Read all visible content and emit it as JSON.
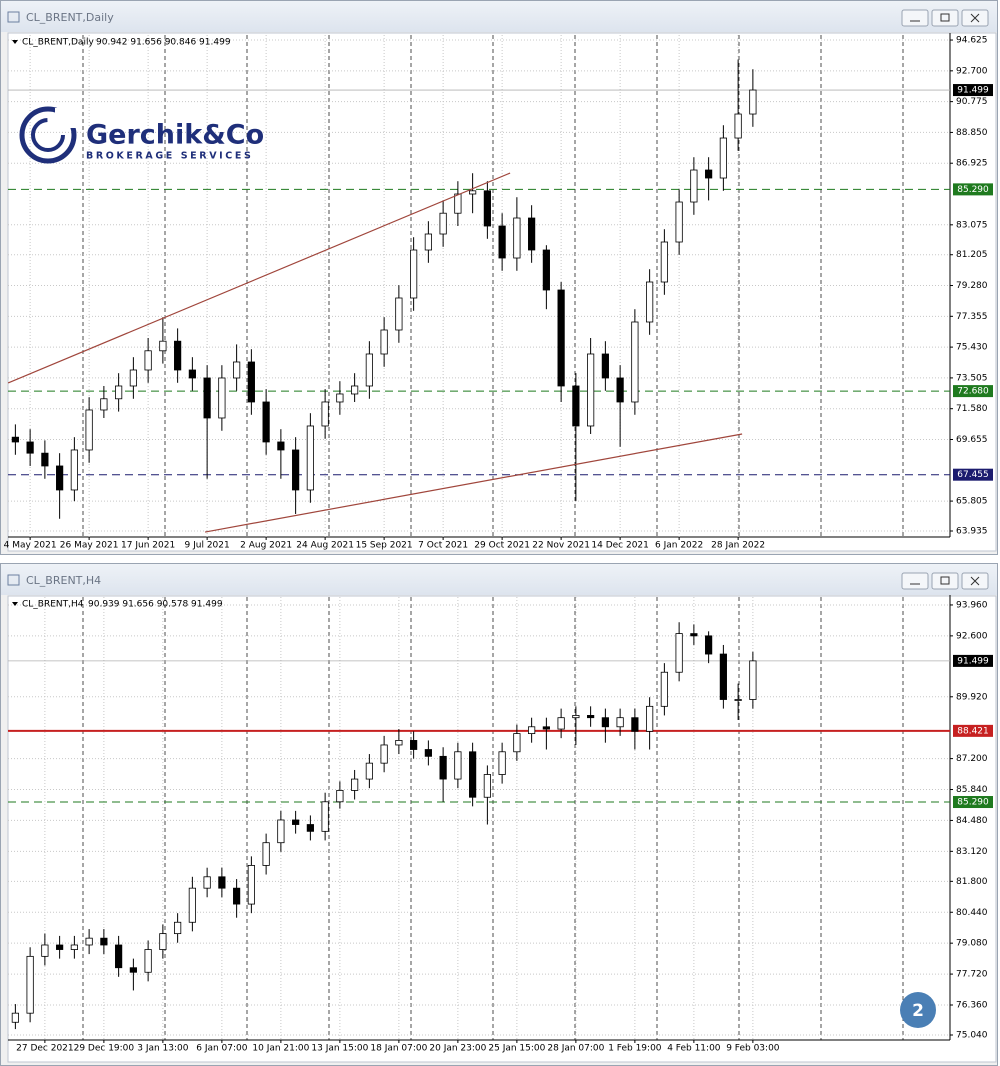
{
  "chart_data": [
    {
      "type": "candlestick",
      "title": "CL_BRENT,Daily",
      "subtitle": "90.942 91.656 90.846 91.499",
      "categories": [
        null,
        "4 May 2021",
        null,
        null,
        null,
        "26 May 2021",
        null,
        null,
        null,
        "17 Jun 2021",
        null,
        null,
        null,
        "9 Jul 2021",
        null,
        null,
        null,
        "2 Aug 2021",
        null,
        null,
        null,
        "24 Aug 2021",
        null,
        null,
        null,
        "15 Sep 2021",
        null,
        null,
        null,
        "7 Oct 2021",
        null,
        null,
        null,
        "29 Oct 2021",
        null,
        null,
        null,
        "22 Nov 2021",
        null,
        null,
        null,
        "14 Dec 2021",
        null,
        null,
        null,
        "6 Jan 2022",
        null,
        null,
        null,
        "28 Jan 2022",
        null
      ],
      "open": [
        69.8,
        69.5,
        68.8,
        68.0,
        66.5,
        69.0,
        71.5,
        72.2,
        73.0,
        74.0,
        75.2,
        75.8,
        74.0,
        73.5,
        71.0,
        73.5,
        74.5,
        72.0,
        69.5,
        69.0,
        66.5,
        70.5,
        72.0,
        72.5,
        73.0,
        75.0,
        76.5,
        78.5,
        81.5,
        82.5,
        83.8,
        85.0,
        85.2,
        83.0,
        81.0,
        83.5,
        81.5,
        79.0,
        73.0,
        70.5,
        75.0,
        73.5,
        72.0,
        77.0,
        79.5,
        82.0,
        84.5,
        86.5,
        86.0,
        88.5,
        90.0
      ],
      "high": [
        70.6,
        70.3,
        69.6,
        68.8,
        69.8,
        72.3,
        73.0,
        73.8,
        74.8,
        76.0,
        77.3,
        76.6,
        74.8,
        74.3,
        74.3,
        75.6,
        75.3,
        72.8,
        70.3,
        69.8,
        71.3,
        72.8,
        73.3,
        73.8,
        75.8,
        77.3,
        79.3,
        82.3,
        83.3,
        84.6,
        85.8,
        86.3,
        85.8,
        83.8,
        84.8,
        84.3,
        81.8,
        79.5,
        73.8,
        76.0,
        75.8,
        74.3,
        77.8,
        80.3,
        82.8,
        85.3,
        87.3,
        87.3,
        89.3,
        93.4,
        92.8
      ],
      "low": [
        68.7,
        68.0,
        67.2,
        64.7,
        65.8,
        68.2,
        71.0,
        71.4,
        72.2,
        73.2,
        74.4,
        73.2,
        72.7,
        67.2,
        70.2,
        72.7,
        71.2,
        68.7,
        67.2,
        65.0,
        65.7,
        69.7,
        71.2,
        72.0,
        72.2,
        74.2,
        75.7,
        77.7,
        80.7,
        81.7,
        83.0,
        83.8,
        82.2,
        80.2,
        80.2,
        80.7,
        77.8,
        72.0,
        65.8,
        70.0,
        72.7,
        69.2,
        71.2,
        76.2,
        78.7,
        81.2,
        83.7,
        84.6,
        85.2,
        87.7,
        89.2
      ],
      "close": [
        69.5,
        68.8,
        68.0,
        66.5,
        69.0,
        71.5,
        72.2,
        73.0,
        74.0,
        75.2,
        75.8,
        74.0,
        73.5,
        71.0,
        73.5,
        74.5,
        72.0,
        69.5,
        69.0,
        66.5,
        70.5,
        72.0,
        72.5,
        73.0,
        75.0,
        76.5,
        78.5,
        81.5,
        82.5,
        83.8,
        85.0,
        85.2,
        83.0,
        81.0,
        83.5,
        81.5,
        79.0,
        73.0,
        70.5,
        75.0,
        73.5,
        72.0,
        77.0,
        79.5,
        82.0,
        84.5,
        86.5,
        86.0,
        88.5,
        90.0,
        91.5
      ],
      "ylim": [
        63.56,
        94.94
      ],
      "yticks": [
        94.625,
        {
          "value": 92.7,
          "label": "92.700"
        },
        90.775,
        {
          "value": 88.85,
          "label": "88.850"
        },
        86.925,
        83.075,
        81.205,
        {
          "value": 79.28,
          "label": "79.280"
        },
        77.355,
        {
          "value": 75.43,
          "label": "75.430"
        },
        73.505,
        {
          "value": 71.58,
          "label": "71.580"
        },
        69.655,
        65.805,
        63.935
      ],
      "grid": true,
      "last_price": 91.499,
      "levels": [
        {
          "value": 85.29,
          "label": "85.290",
          "color": "#1f7a1f",
          "style": "dashed"
        },
        {
          "value": 72.68,
          "label": "72.680",
          "color": "#1f7a1f",
          "style": "dashed"
        },
        {
          "value": 67.455,
          "label": "67.455",
          "color": "#1c1c6e",
          "style": "dashed"
        }
      ],
      "trendlines": [
        {
          "x": [
            -0.49,
            33.54
          ],
          "y": [
            73.19,
            86.31
          ],
          "color": "#a0463c"
        },
        {
          "x": [
            12.86,
            49.27
          ],
          "y": [
            63.87,
            70.0
          ],
          "color": "#a0463c"
        }
      ]
    },
    {
      "type": "candlestick",
      "title": "CL_BRENT,H4",
      "subtitle": "90.939 91.656 90.578 91.499",
      "categories": [
        null,
        null,
        "27 Dec 2021",
        null,
        null,
        null,
        "29 Dec 19:00",
        null,
        null,
        null,
        "3 Jan 13:00",
        null,
        null,
        null,
        "6 Jan 07:00",
        null,
        null,
        null,
        "10 Jan 21:00",
        null,
        null,
        null,
        "13 Jan 15:00",
        null,
        null,
        null,
        "18 Jan 07:00",
        null,
        null,
        null,
        "20 Jan 23:00",
        null,
        null,
        null,
        "25 Jan 15:00",
        null,
        null,
        null,
        "28 Jan 07:00",
        null,
        null,
        null,
        "1 Feb 19:00",
        null,
        null,
        null,
        "4 Feb 11:00",
        null,
        null,
        null,
        "9 Feb 03:00"
      ],
      "open": [
        75.6,
        76.0,
        78.5,
        79.0,
        78.8,
        79.0,
        79.3,
        79.0,
        78.0,
        77.8,
        78.8,
        79.5,
        80.0,
        81.5,
        82.0,
        81.5,
        80.8,
        82.5,
        83.5,
        84.5,
        84.3,
        84.0,
        85.3,
        85.8,
        86.3,
        87.0,
        87.8,
        88.0,
        87.6,
        87.3,
        86.3,
        87.5,
        85.5,
        86.5,
        87.5,
        88.3,
        88.6,
        88.5,
        89.0,
        89.1,
        89.0,
        88.6,
        89.0,
        88.4,
        89.5,
        91.0,
        92.7,
        92.6,
        91.8,
        89.8,
        89.8
      ],
      "high": [
        76.4,
        78.9,
        79.5,
        79.4,
        79.4,
        79.7,
        79.7,
        79.4,
        78.4,
        79.2,
        79.9,
        80.4,
        82.0,
        82.4,
        82.4,
        81.9,
        82.9,
        83.9,
        84.9,
        84.9,
        84.7,
        85.7,
        86.2,
        86.7,
        87.4,
        88.2,
        88.5,
        88.4,
        88.0,
        87.7,
        87.9,
        87.9,
        86.9,
        87.9,
        88.7,
        89.0,
        89.0,
        89.4,
        89.5,
        89.5,
        89.4,
        89.4,
        89.4,
        89.9,
        91.4,
        93.2,
        93.1,
        92.8,
        92.2,
        90.5,
        91.9
      ],
      "low": [
        75.3,
        75.6,
        78.1,
        78.4,
        78.4,
        78.6,
        78.6,
        77.6,
        77.0,
        77.4,
        78.4,
        79.1,
        79.6,
        81.1,
        81.1,
        80.2,
        80.4,
        82.1,
        83.1,
        83.9,
        83.6,
        83.6,
        85.0,
        85.4,
        85.9,
        86.6,
        87.4,
        87.2,
        86.9,
        85.3,
        85.9,
        85.1,
        84.3,
        86.1,
        87.1,
        87.9,
        87.6,
        88.1,
        87.8,
        88.6,
        87.9,
        88.2,
        87.6,
        87.6,
        89.1,
        90.6,
        92.2,
        91.4,
        89.4,
        88.9,
        89.4
      ],
      "close": [
        76.0,
        78.5,
        79.0,
        78.8,
        79.0,
        79.3,
        79.0,
        78.0,
        77.8,
        78.8,
        79.5,
        80.0,
        81.5,
        82.0,
        81.5,
        80.8,
        82.5,
        83.5,
        84.5,
        84.3,
        84.0,
        85.3,
        85.8,
        86.3,
        87.0,
        87.8,
        88.0,
        87.6,
        87.3,
        86.3,
        87.5,
        85.5,
        86.5,
        87.5,
        88.3,
        88.6,
        88.5,
        89.0,
        89.1,
        89.0,
        88.6,
        89.0,
        88.4,
        89.5,
        91.0,
        92.7,
        92.6,
        91.8,
        89.8,
        89.8,
        91.5
      ],
      "ylim": [
        74.82,
        94.31
      ],
      "yticks": [
        {
          "value": 93.96,
          "label": "93.960"
        },
        {
          "value": 92.6,
          "label": "92.600"
        },
        {
          "value": 89.92,
          "label": "89.920"
        },
        {
          "value": 87.2,
          "label": "87.200"
        },
        {
          "value": 85.84,
          "label": "85.840"
        },
        {
          "value": 84.48,
          "label": "84.480"
        },
        {
          "value": 83.12,
          "label": "83.120"
        },
        {
          "value": 81.8,
          "label": "81.800"
        },
        {
          "value": 80.44,
          "label": "80.440"
        },
        {
          "value": 79.08,
          "label": "79.080"
        },
        {
          "value": 77.72,
          "label": "77.720"
        },
        {
          "value": 76.36,
          "label": "76.360"
        },
        {
          "value": 75.04,
          "label": "75.040"
        }
      ],
      "grid": true,
      "last_price": 91.499,
      "levels": [
        {
          "value": 88.421,
          "label": "88.421",
          "color": "#c62020",
          "style": "solid"
        },
        {
          "value": 85.29,
          "label": "85.290",
          "color": "#1f7a1f",
          "style": "dashed"
        }
      ],
      "trendlines": []
    }
  ],
  "logo": {
    "name": "Gerchik&Co",
    "tagline": "BROKERAGE SERVICES"
  },
  "badge": "2"
}
